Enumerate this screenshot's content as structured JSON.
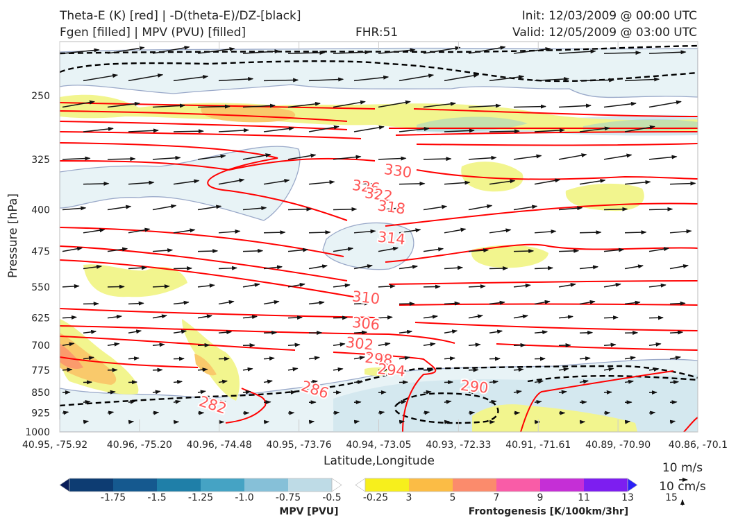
{
  "header": {
    "title_line1": "Theta-E (K) [red] | -D(theta-E)/DZ-[black]",
    "title_line2": "Fgen [filled] | MPV (PVU) [filled]",
    "fhr": "FHR:51",
    "init": "Init: 12/03/2009 @ 00:00 UTC",
    "valid": "Valid: 12/05/2009 @ 03:00 UTC"
  },
  "chart_data": {
    "type": "cross-section",
    "xlabel": "Latitude,Longitude",
    "ylabel": "Pressure [hPa]",
    "yscale": "log",
    "ylim": [
      1000,
      200
    ],
    "y_ticks": [
      250,
      325,
      400,
      475,
      550,
      625,
      700,
      775,
      850,
      925,
      1000
    ],
    "x_ticks": [
      "40.95, -75.92",
      "40.96, -75.20",
      "40.96, -74.48",
      "40.95, -73.76",
      "40.94, -73.05",
      "40.93, -72.33",
      "40.91, -71.61",
      "40.89, -70.90",
      "40.86, -70.1"
    ],
    "theta_e_contours": [
      {
        "label": "330",
        "level": 330,
        "x": 0.53,
        "p": 341
      },
      {
        "label": "326",
        "level": 326,
        "x": 0.48,
        "p": 364
      },
      {
        "label": "322",
        "level": 322,
        "x": 0.5,
        "p": 376
      },
      {
        "label": "318",
        "level": 318,
        "x": 0.52,
        "p": 396
      },
      {
        "label": "314",
        "level": 314,
        "x": 0.52,
        "p": 450
      },
      {
        "label": "310",
        "level": 310,
        "x": 0.48,
        "p": 575
      },
      {
        "label": "306",
        "level": 306,
        "x": 0.48,
        "p": 640
      },
      {
        "label": "302",
        "level": 302,
        "x": 0.47,
        "p": 695
      },
      {
        "label": "298",
        "level": 298,
        "x": 0.5,
        "p": 740
      },
      {
        "label": "294",
        "level": 294,
        "x": 0.52,
        "p": 775
      },
      {
        "label": "290",
        "level": 290,
        "x": 0.65,
        "p": 830
      },
      {
        "label": "286",
        "level": 286,
        "x": 0.4,
        "p": 840
      },
      {
        "label": "282",
        "level": 282,
        "x": 0.24,
        "p": 895
      }
    ],
    "wind_scale": {
      "u_label": "10 m/s",
      "w_label": "10 cm/s"
    }
  },
  "colorbars": {
    "mpv": {
      "title": "MPV [PVU]",
      "ticks": [
        "-1.75",
        "-1.5",
        "-1.25",
        "-1.0",
        "-0.75",
        "-0.5",
        "-0.25"
      ],
      "colors": [
        "#081d58",
        "#0d3c72",
        "#15598f",
        "#1f7fa8",
        "#45a3c4",
        "#86c0d8",
        "#bedbe6",
        "#ffffff"
      ]
    },
    "fgen": {
      "title": "Frontogenesis [K/100km/3hr]",
      "ticks": [
        "3",
        "5",
        "7",
        "9",
        "11",
        "13",
        "15"
      ],
      "colors": [
        "#ffffff",
        "#f7ef1c",
        "#fbbc45",
        "#fb8b6c",
        "#f95ca7",
        "#c52fd6",
        "#7d1ef0",
        "#2b21f6"
      ]
    }
  },
  "styles": {
    "theta_e_color": "#ff0000",
    "theta_e_label_color": "#ff5555",
    "dthetadz_color": "#000000",
    "mpv_fill_light": "#e6f2f6",
    "fgen_fill_light": "#f2f58e",
    "fgen_fill_orange": "#f9c96b"
  }
}
